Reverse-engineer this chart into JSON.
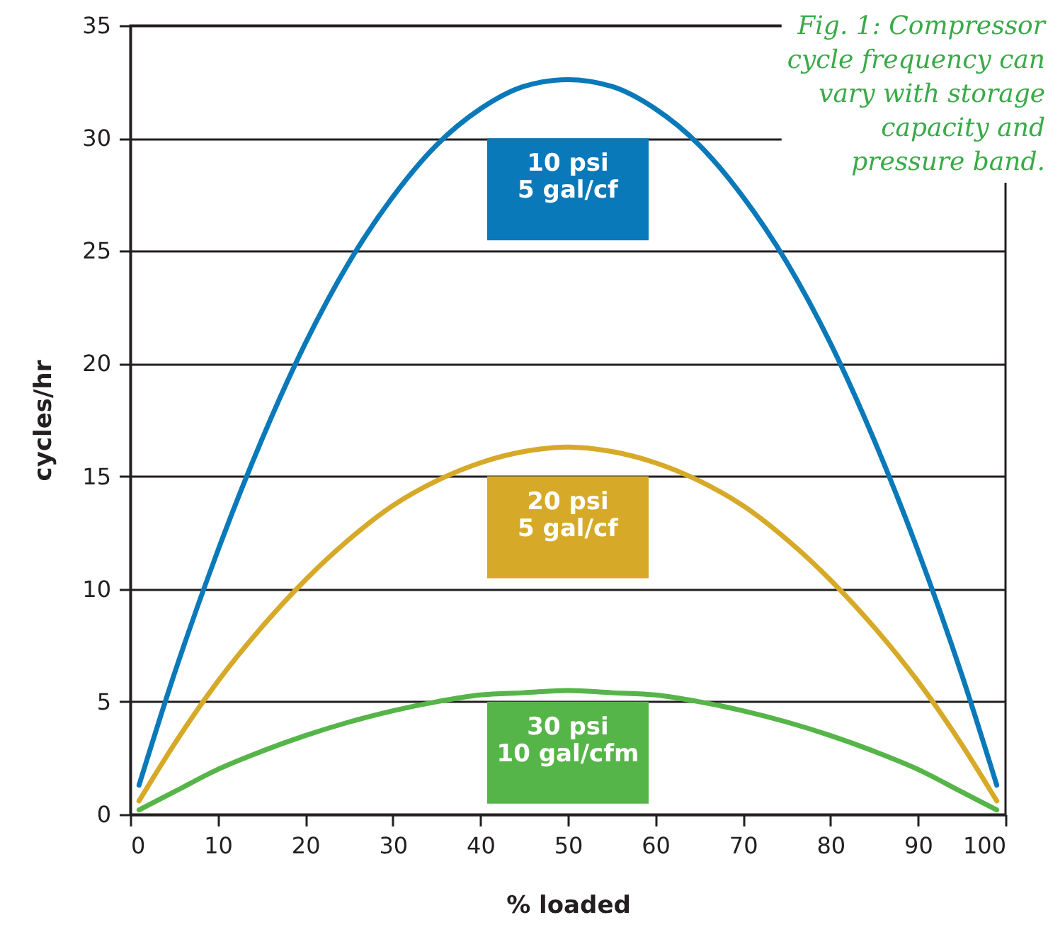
{
  "chart_data": {
    "type": "line",
    "title": "Fig. 1: Compressor cycle frequency can vary with storage capacity and pressure band.",
    "xlabel": "% loaded",
    "ylabel": "cycles/hr",
    "x": [
      1,
      5,
      10,
      15,
      20,
      25,
      30,
      35,
      40,
      45,
      50,
      55,
      60,
      65,
      70,
      75,
      80,
      85,
      90,
      95,
      99
    ],
    "series": [
      {
        "name": "10 psi 5 gal/cf",
        "color": "#0a79b9",
        "values": [
          1.3,
          6.2,
          11.7,
          16.6,
          20.9,
          24.5,
          27.4,
          29.7,
          31.3,
          32.3,
          32.6,
          32.3,
          31.3,
          29.7,
          27.4,
          24.5,
          20.9,
          16.6,
          11.7,
          6.2,
          1.3
        ]
      },
      {
        "name": "20 psi 5 gal/cf",
        "color": "#d6aa28",
        "values": [
          0.6,
          3.1,
          5.9,
          8.3,
          10.4,
          12.2,
          13.7,
          14.8,
          15.6,
          16.1,
          16.3,
          16.1,
          15.6,
          14.8,
          13.7,
          12.2,
          10.4,
          8.3,
          5.9,
          3.1,
          0.6
        ]
      },
      {
        "name": "30 psi 10 gal/cfm",
        "color": "#56b548",
        "values": [
          0.2,
          1.0,
          2.0,
          2.8,
          3.5,
          4.1,
          4.6,
          5.0,
          5.3,
          5.4,
          5.5,
          5.4,
          5.3,
          5.0,
          4.6,
          4.1,
          3.5,
          2.8,
          2.0,
          1.0,
          0.2
        ]
      }
    ],
    "xlim": [
      0,
      100
    ],
    "xticks": [
      0,
      10,
      20,
      30,
      40,
      50,
      60,
      70,
      80,
      90,
      100
    ],
    "ylim": [
      0,
      35
    ],
    "yticks": [
      0,
      5,
      10,
      15,
      20,
      25,
      30,
      35
    ],
    "grid": "y",
    "marker": "none",
    "line_style": "solid"
  }
}
